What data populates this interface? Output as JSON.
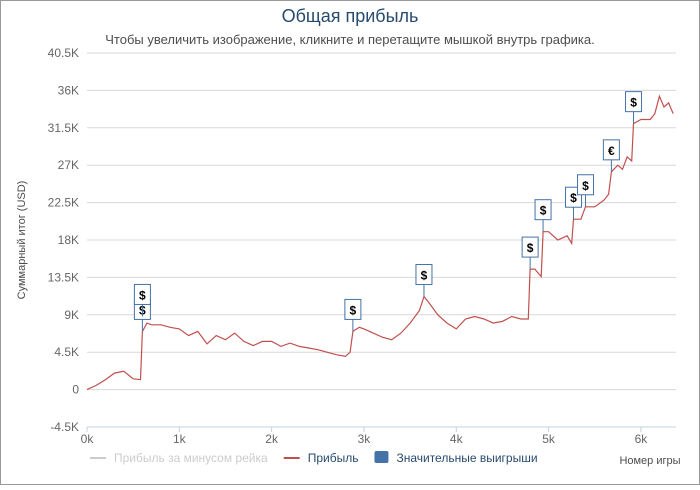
{
  "chart_data": {
    "type": "line",
    "title": "Общая прибыль",
    "subtitle": "Чтобы увеличить изображение, кликните и перетащите мышкой внутрь графика.",
    "y_label": "Суммарный итог (USD)",
    "x_label": "Номер игры",
    "xlim": [
      0,
      6380
    ],
    "xticks": [
      {
        "value": 0,
        "label": "0k"
      },
      {
        "value": 1000,
        "label": "1k"
      },
      {
        "value": 2000,
        "label": "2k"
      },
      {
        "value": 3000,
        "label": "3k"
      },
      {
        "value": 4000,
        "label": "4k"
      },
      {
        "value": 5000,
        "label": "5k"
      },
      {
        "value": 6000,
        "label": "6k"
      }
    ],
    "ylim": [
      -4500,
      40500
    ],
    "yticks": [
      {
        "value": -4500,
        "label": "-4.5K"
      },
      0,
      {
        "value": 4500,
        "label": "4.5K"
      },
      {
        "value": 9000,
        "label": "9K"
      },
      {
        "value": 13500,
        "label": "13.5K"
      },
      {
        "value": 18000,
        "label": "18K"
      },
      {
        "value": 22500,
        "label": "22.5K"
      },
      {
        "value": 27000,
        "label": "27K"
      },
      {
        "value": 31500,
        "label": "31.5K"
      },
      {
        "value": 36000,
        "label": "36K"
      },
      {
        "value": 40500,
        "label": "40.5K"
      }
    ],
    "grid": true,
    "x": [
      0,
      100,
      200,
      300,
      400,
      500,
      580,
      600,
      650,
      700,
      800,
      900,
      1000,
      1100,
      1200,
      1300,
      1400,
      1500,
      1600,
      1700,
      1800,
      1900,
      2000,
      2100,
      2200,
      2300,
      2400,
      2500,
      2600,
      2700,
      2800,
      2850,
      2880,
      2950,
      3000,
      3100,
      3200,
      3300,
      3400,
      3500,
      3600,
      3650,
      3700,
      3800,
      3900,
      4000,
      4100,
      4200,
      4300,
      4400,
      4500,
      4600,
      4700,
      4780,
      4800,
      4850,
      4920,
      4940,
      5000,
      5100,
      5200,
      5250,
      5270,
      5350,
      5400,
      5500,
      5600,
      5650,
      5680,
      5750,
      5800,
      5850,
      5900,
      5920,
      6000,
      6100,
      6150,
      6200,
      6250,
      6300,
      6350
    ],
    "series": [
      {
        "name": "Прибыль за минусом рейка",
        "visible": false,
        "color": "#cccccc"
      },
      {
        "name": "Прибыль",
        "visible": true,
        "color": "#c0504d",
        "values": [
          0,
          500,
          1200,
          2000,
          2200,
          1300,
          1200,
          7000,
          8000,
          7800,
          7800,
          7500,
          7300,
          6500,
          7000,
          5500,
          6500,
          6000,
          6800,
          5800,
          5300,
          5800,
          5800,
          5200,
          5600,
          5200,
          5000,
          4800,
          4500,
          4200,
          4000,
          4500,
          7000,
          7500,
          7300,
          6800,
          6300,
          6000,
          6800,
          8000,
          9500,
          11200,
          10500,
          9000,
          8000,
          7300,
          8500,
          8800,
          8500,
          8000,
          8200,
          8800,
          8500,
          8500,
          14500,
          14500,
          13600,
          19000,
          19000,
          18000,
          18500,
          17600,
          20500,
          20500,
          22000,
          22000,
          22800,
          23500,
          26200,
          27000,
          26500,
          28000,
          27500,
          32000,
          32500,
          32500,
          33200,
          35300,
          34000,
          34500,
          33200
        ]
      }
    ],
    "flags": {
      "name": "Значительные выигрыши",
      "color": "#4572a7",
      "x": [
        600,
        600,
        2880,
        3650,
        4800,
        4940,
        5270,
        5400,
        5680,
        5920
      ],
      "values": [
        7000,
        8800,
        7000,
        11200,
        14500,
        19000,
        20500,
        22000,
        26200,
        32000
      ],
      "titles": [
        "$",
        "$",
        "$",
        "$",
        "$",
        "$",
        "$",
        "$",
        "€",
        "$"
      ]
    }
  }
}
